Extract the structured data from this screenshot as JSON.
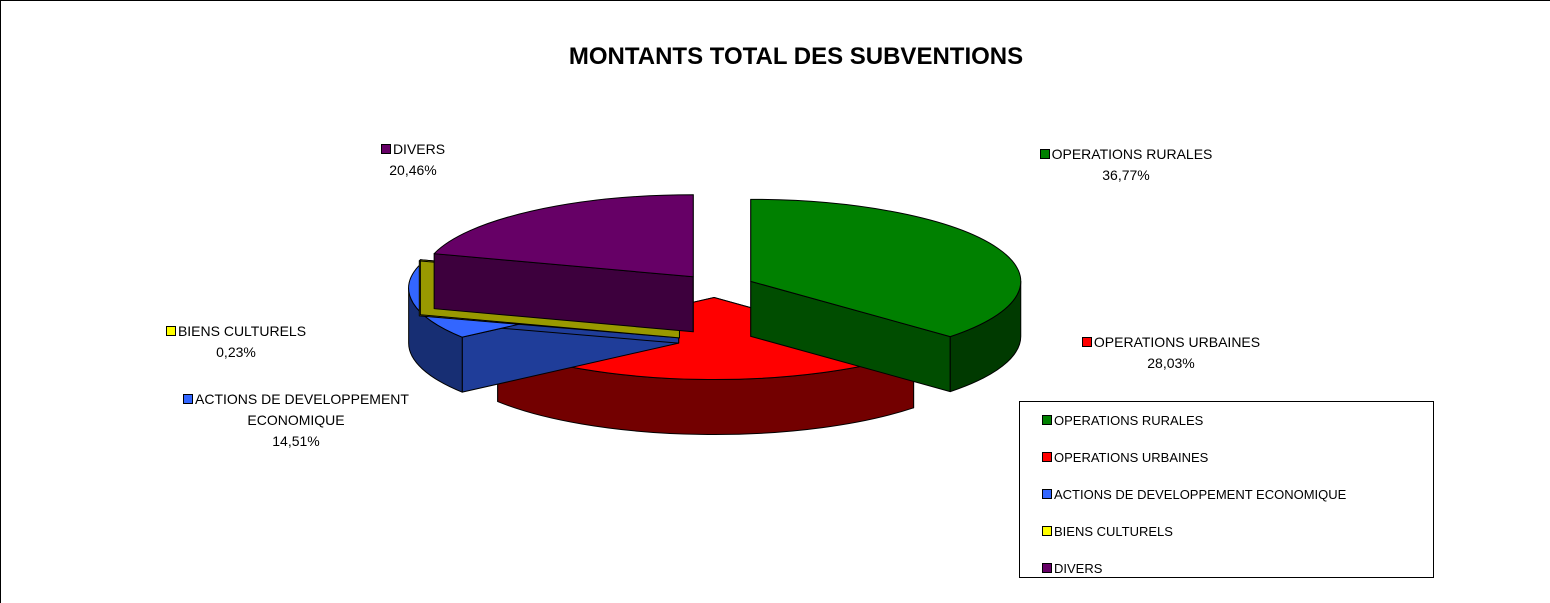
{
  "chart_data": {
    "type": "pie",
    "title": "MONTANTS TOTAL DES SUBVENTIONS",
    "categories": [
      "OPERATIONS RURALES",
      "OPERATIONS URBAINES",
      "ACTIONS DE DEVELOPPEMENT ECONOMIQUE",
      "BIENS CULTURELS",
      "DIVERS"
    ],
    "values": [
      36.77,
      28.03,
      14.51,
      0.23,
      20.46
    ],
    "value_labels": [
      "36,77%",
      "28,03%",
      "14,51%",
      "0,23%",
      "20,46%"
    ],
    "colors": [
      "#008000",
      "#ff0000",
      "#3366ff",
      "#ffff00",
      "#660066"
    ],
    "legend": "right"
  }
}
